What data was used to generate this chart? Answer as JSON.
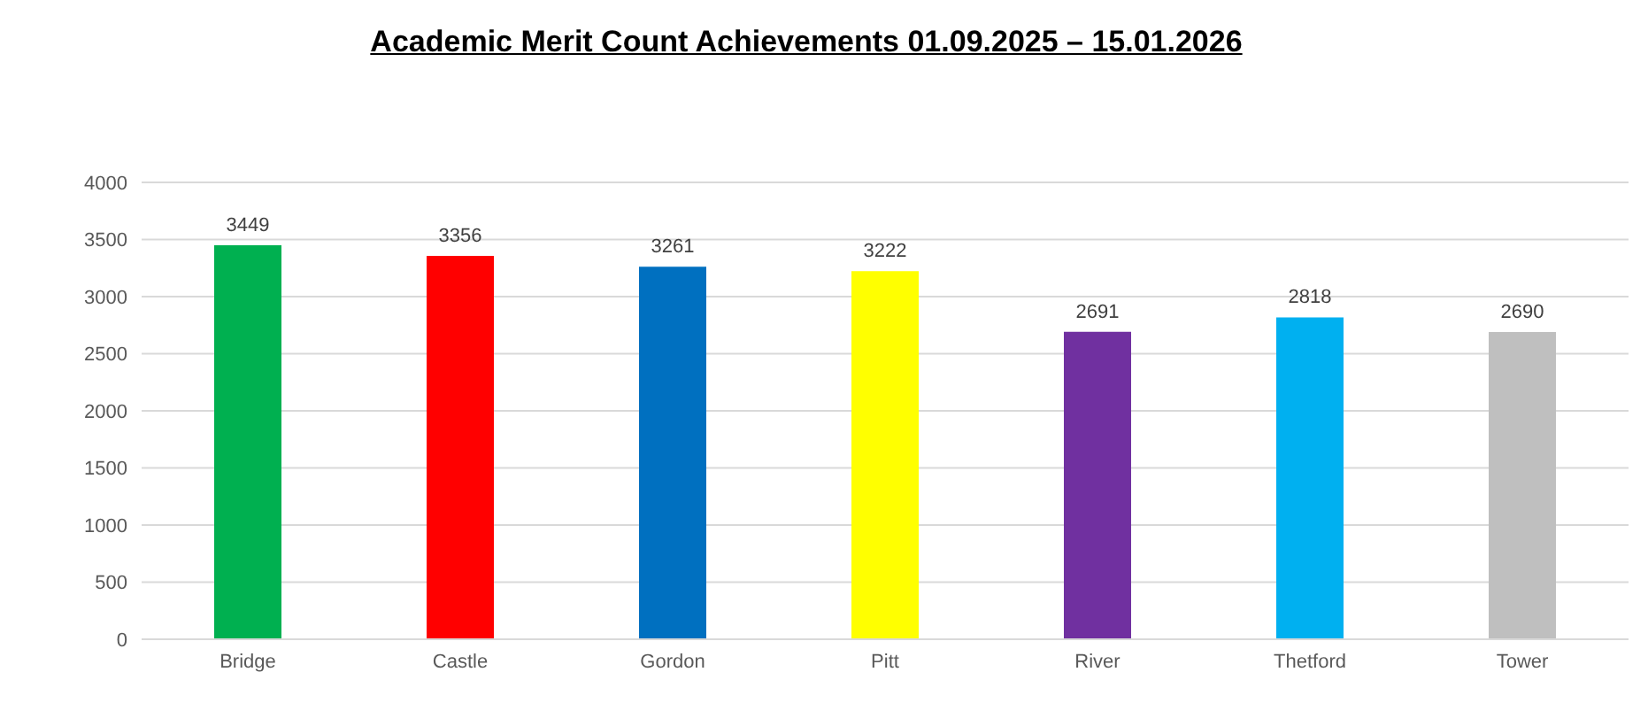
{
  "chart_data": {
    "type": "bar",
    "title": "Academic Merit Count Achievements 01.09.2025 – 15.01.2026",
    "categories": [
      "Bridge",
      "Castle",
      "Gordon",
      "Pitt",
      "River",
      "Thetford",
      "Tower"
    ],
    "values": [
      3449,
      3356,
      3261,
      3222,
      2691,
      2818,
      2690
    ],
    "colors": [
      "#00b050",
      "#ff0000",
      "#0070c0",
      "#ffff00",
      "#7030a0",
      "#00b0f0",
      "#bfbfbf"
    ],
    "ylim": [
      0,
      4000
    ],
    "yticks": [
      0,
      500,
      1000,
      1500,
      2000,
      2500,
      3000,
      3500,
      4000
    ],
    "grid": "y",
    "data_labels": true
  }
}
